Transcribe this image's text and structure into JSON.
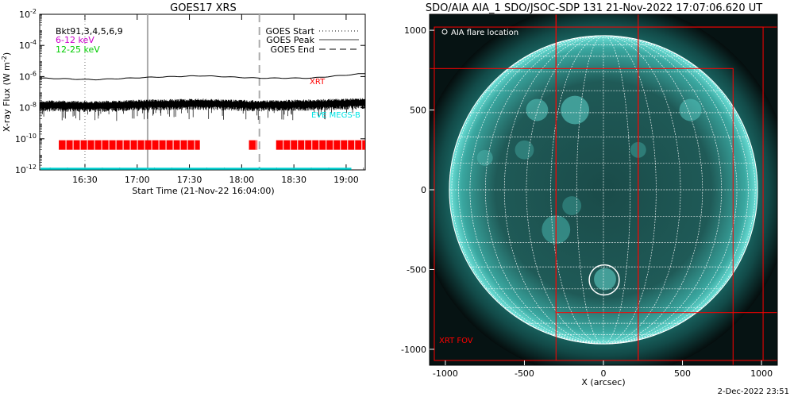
{
  "footer_date": "2-Dec-2022 23:51",
  "chart_data": [
    {
      "type": "line",
      "title": "GOES17 XRS",
      "xlabel": "Start Time (21-Nov-22 16:04:00)",
      "ylabel_main": "X-ray Flux (W m",
      "ylabel_sup": "-2",
      "ylabel_close": ")",
      "log_scale_y": true,
      "ylim_exp": [
        -12,
        -2
      ],
      "xlim_hours": [
        16.067,
        19.183
      ],
      "x_ticks": [
        {
          "label": "16:30",
          "h": 16.5
        },
        {
          "label": "17:00",
          "h": 17.0
        },
        {
          "label": "17:30",
          "h": 17.5
        },
        {
          "label": "18:00",
          "h": 18.0
        },
        {
          "label": "18:30",
          "h": 18.5
        },
        {
          "label": "19:00",
          "h": 19.0
        }
      ],
      "y_ticks": [
        {
          "base": "10",
          "exp": "-12",
          "e": -12
        },
        {
          "base": "10",
          "exp": "-10",
          "e": -10
        },
        {
          "base": "10",
          "exp": "-8",
          "e": -8
        },
        {
          "base": "10",
          "exp": "-6",
          "e": -6
        },
        {
          "base": "10",
          "exp": "-4",
          "e": -4
        },
        {
          "base": "10",
          "exp": "-2",
          "e": -2
        }
      ],
      "legend_top_left": [
        {
          "text": "Bkt91,3,4,5,6,9",
          "color": "#000000"
        },
        {
          "text": "6-12  keV",
          "color": "#cc00cc"
        },
        {
          "text": "12-25 keV",
          "color": "#00cc00"
        }
      ],
      "legend_top_right": [
        {
          "text": "GOES Start",
          "style": "dotted"
        },
        {
          "text": "GOES Peak",
          "style": "solid"
        },
        {
          "text": "GOES End",
          "style": "dashed"
        }
      ],
      "series": [
        {
          "name": "XRT",
          "color": "#ff0000",
          "values_logflux": [
            -6.1,
            -6.2,
            -6.05,
            -5.95,
            -6.1,
            -6.1,
            -5.8
          ]
        },
        {
          "name": "EVE MEGS-B",
          "color": "#00e5e5"
        }
      ],
      "low_channel_logflux": [
        -7.85,
        -7.9,
        -7.8,
        -7.75,
        -7.85,
        -7.8,
        -7.7
      ],
      "goes_start_h": 16.5,
      "goes_peak_h": 17.1,
      "goes_end_h": 18.17,
      "xrt_coverage_logflux": -10.4,
      "xrt_segments_h": [
        [
          16.25,
          17.6
        ],
        [
          18.07,
          18.15
        ],
        [
          18.33,
          19.183
        ]
      ],
      "cyan_baseline_logflux": -12
    },
    {
      "type": "scatter",
      "title": "SDO/AIA AIA_1 SDO/JSOC-SDP 131 21-Nov-2022 17:07:06.620 UT",
      "xlabel": "X (arcsec)",
      "xlim": [
        -1100,
        1100
      ],
      "ylim": [
        -1100,
        1100
      ],
      "x_ticks": [
        -1000,
        -500,
        0,
        500,
        1000
      ],
      "y_ticks": [
        1000,
        500,
        0,
        -500,
        -1000
      ],
      "solar_radius_arcsec": 975,
      "grid_step_deg": 10,
      "legend_flare": "AIA flare location",
      "flare_location": {
        "x": 5,
        "y": -565,
        "r": 95
      },
      "fov_label": "XRT FOV",
      "fov_boxes": [
        {
          "x0": -1070,
          "x1": 1010,
          "y0": -1070,
          "y1": 1020
        },
        {
          "x0": -1100,
          "x1": 820,
          "y0": -1100,
          "y1": 760
        },
        {
          "x0": -300,
          "x1": 1100,
          "y0": -770,
          "y1": 1100
        },
        {
          "x0": -300,
          "x1": 220,
          "y0": -1070,
          "y1": 1100
        },
        {
          "x0": 220,
          "x1": 1100,
          "y0": -1070,
          "y1": 1020
        }
      ],
      "disk_color": "#2a8f8b",
      "corona_color": "#0e3b39"
    }
  ]
}
